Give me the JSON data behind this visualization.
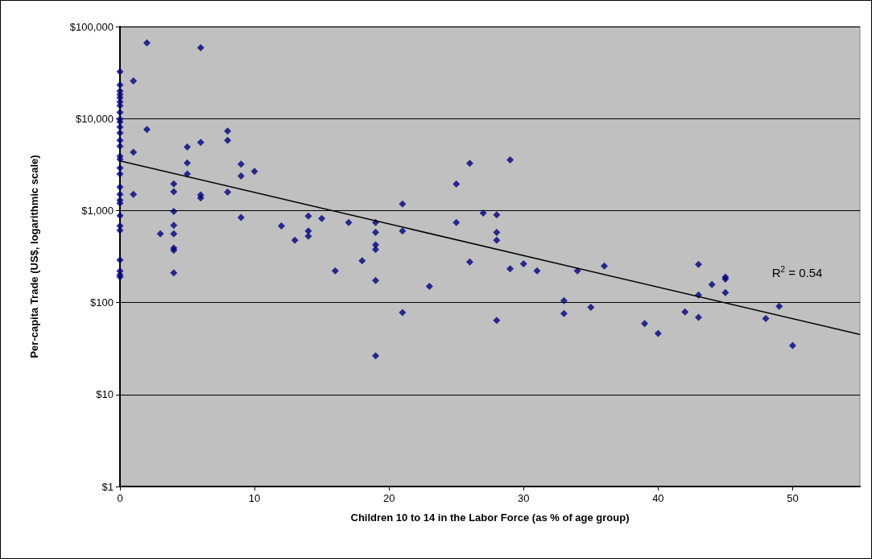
{
  "chart_data": {
    "type": "scatter",
    "xlabel": "Children 10 to 14 in the Labor Force (as % of age group)",
    "ylabel": "Per-capita Trade (US$, logarithmic scale)",
    "log": "y",
    "grid": "y",
    "xlim": [
      0,
      55
    ],
    "xticks": [
      0,
      10,
      20,
      30,
      40,
      50
    ],
    "ylim": [
      1,
      100000
    ],
    "yticks": [
      {
        "value": 1,
        "label": "$1"
      },
      {
        "value": 10,
        "label": "$10"
      },
      {
        "value": 100,
        "label": "$100"
      },
      {
        "value": 1000,
        "label": "$1,000"
      },
      {
        "value": 10000,
        "label": "$10,000"
      },
      {
        "value": 100000,
        "label": "$100,000"
      }
    ],
    "annotations": [
      "R$^{2}$ = 0.54"
    ],
    "series": [
      {
        "color": "#000080",
        "marker": "diamond",
        "x": [
          0,
          0,
          0,
          0,
          0,
          0,
          0,
          0,
          0,
          0,
          0,
          0,
          0,
          0,
          0,
          0,
          0,
          0,
          0,
          0,
          0,
          0,
          0,
          0,
          0,
          0,
          0,
          0,
          0,
          1,
          1,
          1,
          2,
          2,
          3,
          4,
          4,
          4,
          4,
          4,
          4,
          4,
          4,
          5,
          5,
          5,
          6,
          6,
          6,
          6,
          8,
          8,
          8,
          9,
          9,
          9,
          10,
          12,
          13,
          14,
          14,
          14,
          15,
          16,
          17,
          18,
          19,
          19,
          19,
          19,
          19,
          19,
          21,
          21,
          21,
          23,
          25,
          25,
          26,
          26,
          27,
          28,
          28,
          28,
          28,
          29,
          29,
          30,
          31,
          33,
          33,
          34,
          35,
          36,
          39,
          40,
          42,
          43,
          43,
          43,
          44,
          45,
          45,
          45,
          48,
          49,
          50
        ],
        "values": [
          32300,
          23200,
          19900,
          18300,
          16900,
          15200,
          13800,
          11700,
          9900,
          9200,
          8100,
          7000,
          5800,
          5000,
          3900,
          3600,
          2900,
          2500,
          1800,
          1500,
          1300,
          1200,
          880,
          680,
          610,
          290,
          220,
          200,
          190,
          25600,
          4300,
          1500,
          66500,
          7600,
          560,
          1950,
          1600,
          980,
          690,
          560,
          390,
          370,
          210,
          4900,
          3300,
          2500,
          59000,
          5500,
          1480,
          1370,
          7300,
          5800,
          1590,
          3200,
          2370,
          840,
          2670,
          680,
          475,
          870,
          600,
          525,
          820,
          221,
          740,
          284,
          740,
          580,
          424,
          378,
          174,
          26.3,
          1180,
          600,
          78,
          150,
          1940,
          740,
          3270,
          276,
          940,
          900,
          580,
          475,
          64,
          3560,
          233,
          264,
          221,
          105,
          76,
          221,
          89,
          250,
          59,
          46,
          79,
          260,
          121,
          69,
          157,
          189,
          180,
          128,
          67,
          91,
          34
        ]
      },
      {
        "type": "line",
        "color": "#000000",
        "x": [
          0,
          55
        ],
        "values": [
          3470,
          45
        ]
      }
    ]
  }
}
